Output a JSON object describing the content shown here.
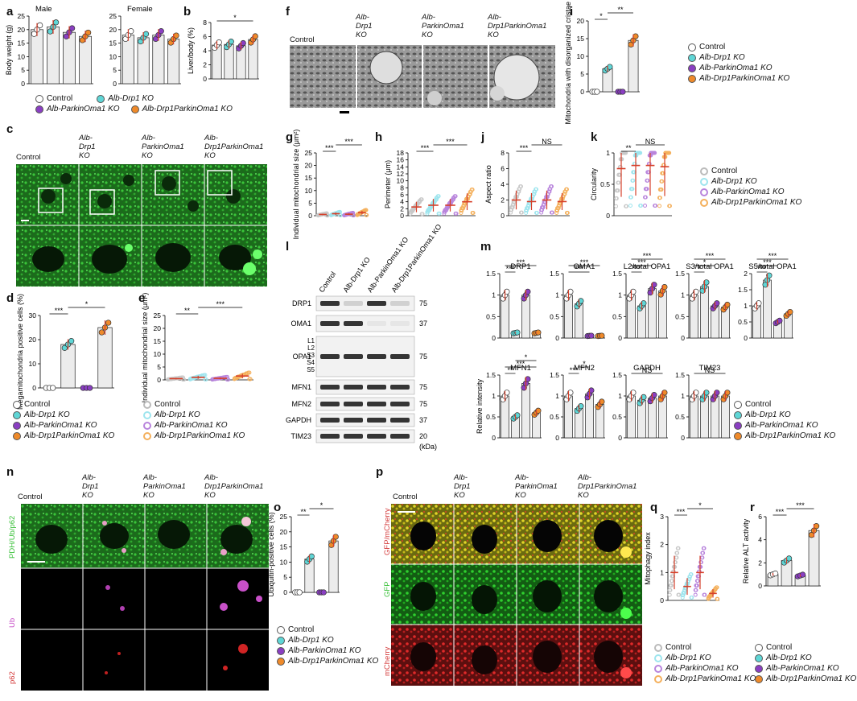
{
  "colors": {
    "control": "#ffffff",
    "drp1": "#5fd6d6",
    "parkin": "#8a3fc2",
    "dko": "#ef8a2a",
    "err": "#d6402a",
    "bar": "#ececec"
  },
  "panels": {
    "a": "a",
    "b": "b",
    "c": "c",
    "d": "d",
    "e": "e",
    "f": "f",
    "g": "g",
    "h": "h",
    "i": "i",
    "j": "j",
    "k": "k",
    "l": "l",
    "m": "m",
    "n": "n",
    "o": "o",
    "p": "p",
    "q": "q",
    "r": "r"
  },
  "groups": {
    "control": "Control",
    "drp1": "Alb-Drp1 KO",
    "parkin": "Alb-ParkinOma1 KO",
    "dko": "Alb-Drp1ParkinOma1 KO"
  },
  "img_cols": {
    "control": "Control",
    "drp1_1": "Alb-",
    "drp1_2": "Drp1",
    "drp1_3": "KO",
    "pk_1": "Alb-",
    "pk_2": "ParkinOma1",
    "pk_3": "KO",
    "dko_1": "Alb-",
    "dko_2": "Drp1ParkinOma1",
    "dko_3": "KO"
  },
  "sig": {
    "s1": "*",
    "s2": "**",
    "s3": "***",
    "ns": "NS"
  },
  "n_rows": {
    "r1": "PDH/Ub/p62",
    "r2": "Ub",
    "r3": "p62"
  },
  "p_rows": {
    "r1": "GFP/mCherry",
    "r2": "GFP",
    "r3": "mCherry"
  },
  "blot": {
    "lanes": [
      "Control",
      "Alb-Drp1 KO",
      "Alb-ParkinOma1 KO",
      "Alb-Drp1ParkinOma1 KO"
    ],
    "rows": [
      "DRP1",
      "OMA1",
      "OPA1",
      "MFN1",
      "MFN2",
      "GAPDH",
      "TIM23"
    ],
    "opa1_bands": [
      "L1",
      "L2",
      "S3",
      "S4",
      "S5"
    ],
    "mw": [
      "75",
      "37",
      "75",
      "75",
      "75",
      "37",
      "20"
    ],
    "kda": "(kDa)"
  },
  "chart_data": [
    {
      "panel": "a",
      "type": "bar",
      "subtitle": "Male",
      "ylabel": "Body weight (g)",
      "ylim": [
        0,
        25
      ],
      "yticks": [
        0,
        5,
        10,
        15,
        20,
        25
      ],
      "categories": [
        "Control",
        "Alb-Drp1 KO",
        "Alb-ParkinOma1 KO",
        "Alb-Drp1ParkinOma1 KO"
      ],
      "values": [
        20,
        21,
        19,
        17.5
      ]
    },
    {
      "panel": "a",
      "type": "bar",
      "subtitle": "Female",
      "ylabel": "",
      "ylim": [
        0,
        25
      ],
      "yticks": [
        0,
        5,
        10,
        15,
        20,
        25
      ],
      "categories": [
        "Control",
        "Alb-Drp1 KO",
        "Alb-ParkinOma1 KO",
        "Alb-Drp1ParkinOma1 KO"
      ],
      "values": [
        18,
        17,
        18,
        16.5
      ]
    },
    {
      "panel": "b",
      "type": "bar",
      "ylabel": "Liver/body (%)",
      "ylim": [
        0,
        8
      ],
      "yticks": [
        0,
        2,
        4,
        6,
        8
      ],
      "categories": [
        "Control",
        "Alb-Drp1 KO",
        "Alb-ParkinOma1 KO",
        "Alb-Drp1ParkinOma1 KO"
      ],
      "values": [
        4.8,
        4.9,
        4.7,
        5.6
      ],
      "annotations": [
        {
          "text": "*",
          "between": [
            0,
            3
          ]
        }
      ]
    },
    {
      "panel": "d",
      "type": "bar",
      "ylabel": "Megamitochondria positive cells (%)",
      "ylim": [
        0,
        30
      ],
      "yticks": [
        0,
        10,
        20,
        30
      ],
      "categories": [
        "Control",
        "Alb-Drp1 KO",
        "Alb-ParkinOma1 KO",
        "Alb-Drp1ParkinOma1 KO"
      ],
      "values": [
        0,
        18,
        0,
        25
      ],
      "annotations": [
        {
          "text": "***",
          "between": [
            0,
            1
          ]
        },
        {
          "text": "*",
          "between": [
            1,
            3
          ]
        }
      ]
    },
    {
      "panel": "e",
      "type": "scatter",
      "ylabel": "Individual mitochondrial size (μm²)",
      "ylim": [
        0,
        25
      ],
      "yticks": [
        0,
        5,
        10,
        15,
        20,
        25
      ],
      "categories": [
        "Control",
        "Alb-Drp1 KO",
        "Alb-ParkinOma1 KO",
        "Alb-Drp1ParkinOma1 KO"
      ],
      "values": [
        0.5,
        1,
        0.6,
        1.5
      ],
      "annotations": [
        {
          "text": "**",
          "between": [
            0,
            1
          ]
        },
        {
          "text": "***",
          "between": [
            1,
            3
          ]
        }
      ]
    },
    {
      "panel": "g",
      "type": "scatter",
      "ylabel": "Individual mitochondrial size (μm²)",
      "ylim": [
        0,
        25
      ],
      "yticks": [
        0,
        5,
        10,
        15,
        20,
        25
      ],
      "categories": [
        "Control",
        "Alb-Drp1 KO",
        "Alb-ParkinOma1 KO",
        "Alb-Drp1ParkinOma1 KO"
      ],
      "values": [
        0.5,
        0.8,
        0.6,
        1.2
      ],
      "annotations": [
        {
          "text": "***",
          "between": [
            0,
            1
          ]
        },
        {
          "text": "***",
          "between": [
            1,
            3
          ]
        }
      ]
    },
    {
      "panel": "h",
      "type": "scatter",
      "ylabel": "Perimeter (μm)",
      "ylim": [
        0,
        18
      ],
      "yticks": [
        0,
        2,
        4,
        6,
        8,
        10,
        12,
        14,
        16,
        18
      ],
      "categories": [
        "Control",
        "Alb-Drp1 KO",
        "Alb-ParkinOma1 KO",
        "Alb-Drp1ParkinOma1 KO"
      ],
      "values": [
        2.5,
        3,
        3,
        4
      ],
      "annotations": [
        {
          "text": "***",
          "between": [
            0,
            1
          ]
        },
        {
          "text": "***",
          "between": [
            1,
            3
          ]
        }
      ]
    },
    {
      "panel": "i",
      "type": "bar",
      "ylabel": "Mitochondria with disorganized cristae (%)",
      "ylim": [
        0,
        20
      ],
      "yticks": [
        0,
        5,
        10,
        15,
        20
      ],
      "categories": [
        "Control",
        "Alb-Drp1 KO",
        "Alb-ParkinOma1 KO",
        "Alb-Drp1ParkinOma1 KO"
      ],
      "values": [
        0,
        6.5,
        0,
        14.5
      ],
      "annotations": [
        {
          "text": "*",
          "between": [
            0,
            1
          ]
        },
        {
          "text": "**",
          "between": [
            1,
            3
          ]
        }
      ]
    },
    {
      "panel": "j",
      "type": "scatter",
      "ylabel": "Aspect ratio",
      "ylim": [
        0,
        8
      ],
      "yticks": [
        0,
        2,
        4,
        6,
        8
      ],
      "categories": [
        "Control",
        "Alb-Drp1 KO",
        "Alb-ParkinOma1 KO",
        "Alb-Drp1ParkinOma1 KO"
      ],
      "values": [
        2,
        1.8,
        2,
        1.8
      ],
      "annotations": [
        {
          "text": "***",
          "between": [
            0,
            1
          ]
        },
        {
          "text": "NS",
          "between": [
            1,
            3
          ]
        }
      ]
    },
    {
      "panel": "k",
      "type": "scatter",
      "ylabel": "Circularity",
      "ylim": [
        0,
        1
      ],
      "yticks": [
        0,
        0.5,
        1
      ],
      "categories": [
        "Control",
        "Alb-Drp1 KO",
        "Alb-ParkinOma1 KO",
        "Alb-Drp1ParkinOma1 KO"
      ],
      "values": [
        0.75,
        0.8,
        0.8,
        0.78
      ],
      "annotations": [
        {
          "text": "**",
          "between": [
            0,
            1
          ]
        },
        {
          "text": "NS",
          "between": [
            1,
            3
          ]
        }
      ]
    },
    {
      "panel": "m",
      "type": "bar",
      "subtitle": "DRP1",
      "ylim": [
        0,
        1.5
      ],
      "yticks": [
        0,
        0.5,
        1.0,
        1.5
      ],
      "values": [
        1.0,
        0.12,
        1.0,
        0.12
      ],
      "annotations": [
        {
          "text": "***",
          "between": [
            0,
            1
          ]
        },
        {
          "text": "***",
          "between": [
            0,
            3
          ]
        }
      ]
    },
    {
      "panel": "m",
      "type": "bar",
      "subtitle": "OMA1",
      "ylim": [
        0,
        1.5
      ],
      "yticks": [
        0,
        0.5,
        1.0,
        1.5
      ],
      "values": [
        1.0,
        0.8,
        0.05,
        0.05
      ],
      "annotations": [
        {
          "text": "***",
          "between": [
            0,
            2
          ]
        },
        {
          "text": "***",
          "between": [
            0,
            3
          ]
        }
      ]
    },
    {
      "panel": "m",
      "type": "bar",
      "subtitle": "L2/total OPA1",
      "ylim": [
        0,
        1.5
      ],
      "yticks": [
        0,
        0.5,
        1.0,
        1.5
      ],
      "values": [
        1.0,
        0.75,
        1.15,
        1.1
      ],
      "annotations": [
        {
          "text": "***",
          "between": [
            0,
            1
          ]
        },
        {
          "text": "***",
          "between": [
            0,
            2
          ]
        },
        {
          "text": "***",
          "between": [
            0,
            3
          ]
        }
      ]
    },
    {
      "panel": "m",
      "type": "bar",
      "subtitle": "S3/total OPA1",
      "ylim": [
        0,
        1.5
      ],
      "yticks": [
        0,
        0.5,
        1.0,
        1.5
      ],
      "values": [
        1.0,
        1.2,
        0.75,
        0.72
      ],
      "annotations": [
        {
          "text": "*",
          "between": [
            0,
            1
          ]
        },
        {
          "text": "*",
          "between": [
            0,
            2
          ]
        },
        {
          "text": "***",
          "between": [
            0,
            3
          ]
        }
      ]
    },
    {
      "panel": "m",
      "type": "bar",
      "subtitle": "S5/total OPA1",
      "ylim": [
        0,
        2.0
      ],
      "yticks": [
        0,
        0.5,
        1.0,
        1.5,
        2.0
      ],
      "values": [
        1.0,
        1.8,
        0.5,
        0.75
      ],
      "annotations": [
        {
          "text": "***",
          "between": [
            0,
            1
          ]
        },
        {
          "text": "***",
          "between": [
            0,
            2
          ]
        },
        {
          "text": "***",
          "between": [
            0,
            3
          ]
        }
      ]
    },
    {
      "panel": "m",
      "type": "bar",
      "subtitle": "MFN1",
      "ylabel": "Relative intensity",
      "ylim": [
        0,
        1.5
      ],
      "yticks": [
        0,
        0.5,
        1.0,
        1.5
      ],
      "values": [
        1.0,
        0.5,
        1.3,
        0.6
      ],
      "annotations": [
        {
          "text": "**",
          "between": [
            0,
            1
          ]
        },
        {
          "text": "***",
          "between": [
            0,
            3
          ]
        },
        {
          "text": "*",
          "between": [
            1,
            3
          ]
        }
      ]
    },
    {
      "panel": "m",
      "type": "bar",
      "subtitle": "MFN2",
      "ylim": [
        0,
        1.5
      ],
      "yticks": [
        0,
        0.5,
        1.0,
        1.5
      ],
      "values": [
        1.0,
        0.7,
        1.05,
        0.8
      ],
      "annotations": [
        {
          "text": "***",
          "between": [
            0,
            1
          ]
        },
        {
          "text": "*",
          "between": [
            1,
            2
          ]
        }
      ]
    },
    {
      "panel": "m",
      "type": "bar",
      "subtitle": "GAPDH",
      "ylim": [
        0,
        1.5
      ],
      "yticks": [
        0,
        0.5,
        1.0,
        1.5
      ],
      "values": [
        1.0,
        0.9,
        0.95,
        1.0
      ],
      "annotations": [
        {
          "text": "NS",
          "between": [
            0,
            3
          ]
        }
      ]
    },
    {
      "panel": "m",
      "type": "bar",
      "subtitle": "TIM23",
      "ylim": [
        0,
        1.5
      ],
      "yticks": [
        0,
        0.5,
        1.0,
        1.5
      ],
      "values": [
        1.0,
        1.0,
        1.0,
        1.0
      ],
      "annotations": [
        {
          "text": "NS",
          "between": [
            0,
            3
          ]
        }
      ]
    },
    {
      "panel": "o",
      "type": "bar",
      "ylabel": "Ubiquitin-positive cells (%)",
      "ylim": [
        0,
        25
      ],
      "yticks": [
        0,
        5,
        10,
        15,
        20,
        25
      ],
      "categories": [
        "Control",
        "Alb-Drp1 KO",
        "Alb-ParkinOma1 KO",
        "Alb-Drp1ParkinOma1 KO"
      ],
      "values": [
        0,
        11,
        0,
        17
      ],
      "annotations": [
        {
          "text": "**",
          "between": [
            0,
            1
          ]
        },
        {
          "text": "*",
          "between": [
            1,
            3
          ]
        }
      ]
    },
    {
      "panel": "q",
      "type": "scatter",
      "ylabel": "Mitophagy index",
      "ylim": [
        0,
        3
      ],
      "yticks": [
        0,
        1,
        2,
        3
      ],
      "categories": [
        "Control",
        "Alb-Drp1 KO",
        "Alb-ParkinOma1 KO",
        "Alb-Drp1ParkinOma1 KO"
      ],
      "values": [
        1.0,
        0.5,
        1.0,
        0.25
      ],
      "annotations": [
        {
          "text": "***",
          "between": [
            0,
            1
          ]
        },
        {
          "text": "*",
          "between": [
            1,
            3
          ]
        }
      ]
    },
    {
      "panel": "r",
      "type": "bar",
      "ylabel": "Relative ALT activity",
      "ylim": [
        0,
        6
      ],
      "yticks": [
        0,
        2,
        4,
        6
      ],
      "categories": [
        "Control",
        "Alb-Drp1 KO",
        "Alb-ParkinOma1 KO",
        "Alb-Drp1ParkinOma1 KO"
      ],
      "values": [
        1.0,
        2.2,
        0.9,
        4.8
      ],
      "annotations": [
        {
          "text": "***",
          "between": [
            0,
            1
          ]
        },
        {
          "text": "***",
          "between": [
            1,
            3
          ]
        }
      ]
    }
  ]
}
